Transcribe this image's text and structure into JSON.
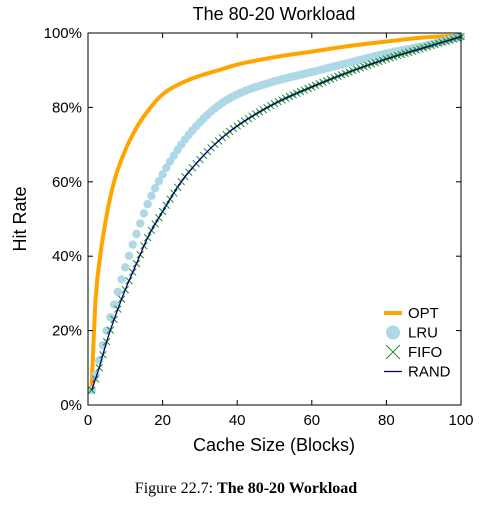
{
  "figure": {
    "caption_prefix": "Figure 22.7:",
    "caption_title": "The 80-20 Workload"
  },
  "chart_data": {
    "type": "line",
    "title": "The 80-20 Workload",
    "xlabel": "Cache Size (Blocks)",
    "ylabel": "Hit Rate",
    "xlim": [
      0,
      100
    ],
    "ylim": [
      0,
      100
    ],
    "xticks": [
      "0",
      "20",
      "40",
      "60",
      "80",
      "100"
    ],
    "xtick_values": [
      0,
      20,
      40,
      60,
      80,
      100
    ],
    "yticks": [
      "0%",
      "20%",
      "40%",
      "60%",
      "80%",
      "100%"
    ],
    "ytick_values": [
      0,
      20,
      40,
      60,
      80,
      100
    ],
    "grid": false,
    "legend_position": "bottom-right",
    "series": [
      {
        "name": "OPT",
        "marker": "line",
        "color": "#FFA500",
        "x": [
          1,
          2,
          3,
          5,
          7,
          10,
          13,
          16,
          20,
          25,
          30,
          35,
          40,
          50,
          60,
          70,
          80,
          90,
          100
        ],
        "y": [
          5,
          28,
          38,
          51,
          60,
          68.5,
          74.5,
          79,
          83.5,
          86.5,
          88.5,
          90,
          91.5,
          93.5,
          95,
          96.5,
          97.7,
          98.8,
          99.3
        ]
      },
      {
        "name": "LRU",
        "marker": "circle",
        "color": "#ADD8E6",
        "x": [
          1,
          2,
          3,
          5,
          7,
          10,
          13,
          16,
          20,
          25,
          30,
          35,
          40,
          50,
          60,
          70,
          80,
          90,
          100
        ],
        "y": [
          4,
          8,
          12,
          20,
          27,
          37,
          46,
          54,
          62,
          70,
          76,
          80.5,
          83.5,
          87,
          89.5,
          92,
          94.5,
          96.5,
          99
        ]
      },
      {
        "name": "FIFO",
        "marker": "x",
        "color": "#228B22",
        "x": [
          1,
          2,
          3,
          5,
          7,
          10,
          13,
          16,
          20,
          25,
          30,
          35,
          40,
          50,
          60,
          70,
          80,
          90,
          100
        ],
        "y": [
          4,
          7,
          10,
          17,
          23,
          31,
          38,
          45,
          52,
          60,
          66,
          71,
          75,
          81,
          85.5,
          89.5,
          93,
          96,
          99
        ]
      },
      {
        "name": "RAND",
        "marker": "line",
        "color": "#000080",
        "x": [
          1,
          2,
          3,
          5,
          7,
          10,
          13,
          16,
          20,
          25,
          30,
          35,
          40,
          50,
          60,
          70,
          80,
          90,
          100
        ],
        "y": [
          4,
          7,
          10,
          17,
          23,
          31,
          38,
          45,
          52,
          60,
          66,
          71,
          75,
          81,
          85.5,
          89.5,
          93,
          96,
          99
        ]
      }
    ]
  }
}
